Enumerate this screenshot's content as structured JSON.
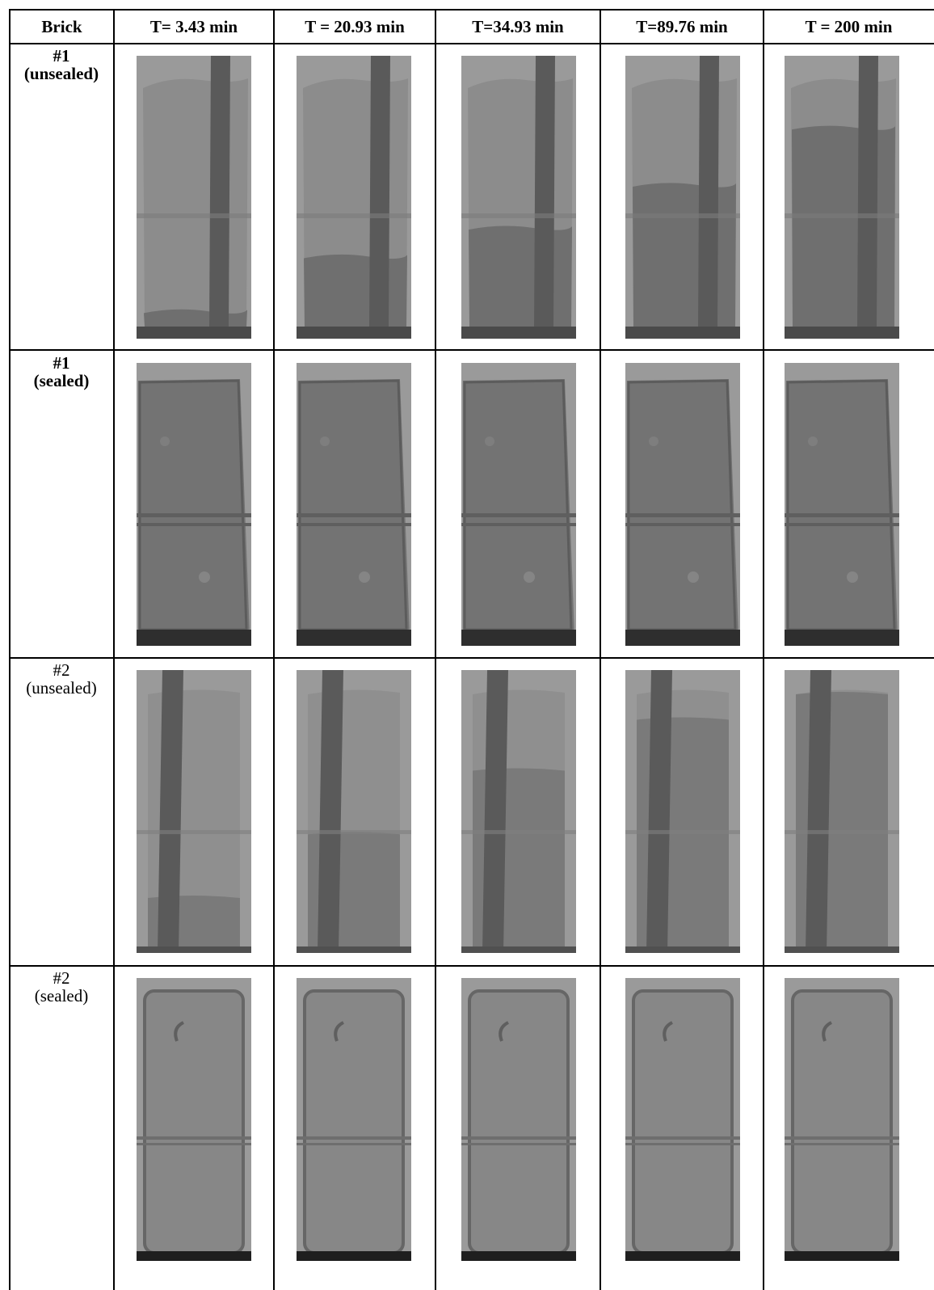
{
  "header": {
    "brick": "Brick",
    "times": [
      "T= 3.43 min",
      "T = 20.93 min",
      "T=34.93 min",
      "T=89.76 min",
      "T = 200 min"
    ]
  },
  "rows": [
    {
      "id": "#1",
      "state": "(unsealed)"
    },
    {
      "id": "#1",
      "state": "(sealed)"
    },
    {
      "id": "#2",
      "state": "(unsealed)"
    },
    {
      "id": "#2",
      "state": "(sealed)"
    }
  ],
  "images": {
    "row0": {
      "water_front_fraction": [
        0.07,
        0.3,
        0.42,
        0.6,
        0.84
      ]
    }
  },
  "colors": {
    "brick_dry": "#8c8c8c",
    "brick_wet": "#6f6f6f",
    "background": "#9a9a9a",
    "rod": "#5a5a5a"
  }
}
